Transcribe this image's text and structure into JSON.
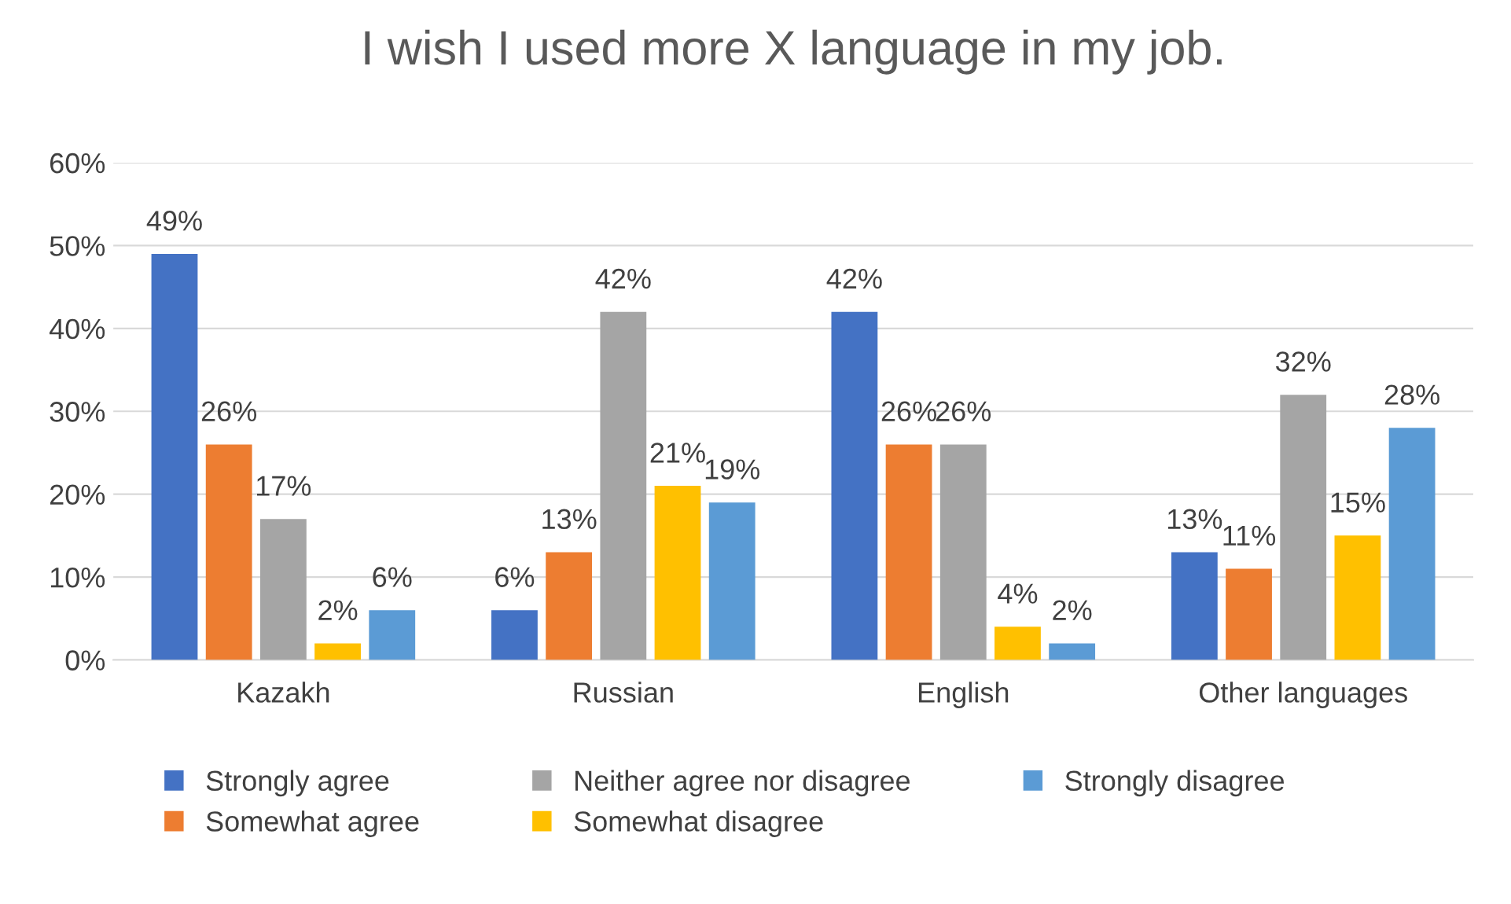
{
  "chart_data": {
    "type": "bar",
    "title": "I wish I used more X language in my job.",
    "categories": [
      "Kazakh",
      "Russian",
      "English",
      "Other languages"
    ],
    "series": [
      {
        "name": "Strongly agree",
        "color": "#4472c4",
        "values": [
          49,
          6,
          42,
          13
        ],
        "value_labels": [
          "49%",
          "6%",
          "42%",
          "13%"
        ]
      },
      {
        "name": "Somewhat agree",
        "color": "#ed7d31",
        "values": [
          26,
          13,
          26,
          11
        ],
        "value_labels": [
          "26%",
          "13%",
          "26%",
          "11%"
        ]
      },
      {
        "name": "Neither agree nor disagree",
        "color": "#a5a5a5",
        "values": [
          17,
          42,
          26,
          32
        ],
        "value_labels": [
          "17%",
          "42%",
          "26%",
          "32%"
        ]
      },
      {
        "name": "Somewhat disagree",
        "color": "#ffc000",
        "values": [
          2,
          21,
          4,
          15
        ],
        "value_labels": [
          "2%",
          "21%",
          "4%",
          "15%"
        ]
      },
      {
        "name": "Strongly disagree",
        "color": "#5b9bd5",
        "values": [
          6,
          19,
          2,
          28
        ],
        "value_labels": [
          "6%",
          "19%",
          "2%",
          "28%"
        ]
      }
    ],
    "ylim": [
      0,
      60
    ],
    "yticks": [
      {
        "value": 0,
        "label": "0%"
      },
      {
        "value": 10,
        "label": "10%"
      },
      {
        "value": 20,
        "label": "20%"
      },
      {
        "value": 30,
        "label": "30%"
      },
      {
        "value": 40,
        "label": "40%"
      },
      {
        "value": 50,
        "label": "50%"
      },
      {
        "value": 60,
        "label": "60%"
      }
    ],
    "grid": "y",
    "legend": "bottom"
  }
}
